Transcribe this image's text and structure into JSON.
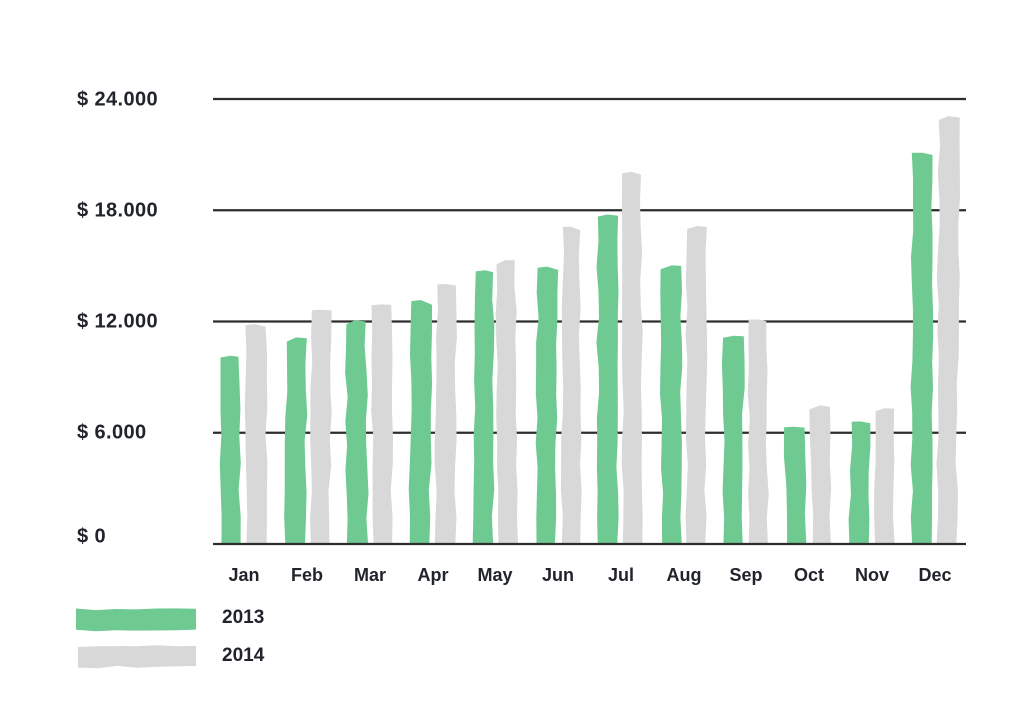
{
  "colors": {
    "green": "#6fca92",
    "gray": "#d8d8d8",
    "text": "#21242b",
    "gridline": "#2d2d2d",
    "background": "#ffffff"
  },
  "chart_data": {
    "type": "bar",
    "title": "",
    "style": "hand-drawn",
    "categories": [
      "Jan",
      "Feb",
      "Mar",
      "Apr",
      "May",
      "Jun",
      "Jul",
      "Aug",
      "Sep",
      "Oct",
      "Nov",
      "Dec"
    ],
    "series": [
      {
        "name": "2013",
        "color": "#6fca92",
        "values": [
          10100,
          11100,
          12000,
          13100,
          14700,
          14900,
          17700,
          15000,
          11200,
          6300,
          6600,
          21100
        ]
      },
      {
        "name": "2014",
        "color": "#d8d8d8",
        "values": [
          11800,
          12600,
          12900,
          14000,
          15300,
          17100,
          20000,
          17100,
          12100,
          7400,
          7300,
          23000
        ]
      }
    ],
    "y_ticks": [
      "$ 24.000",
      "$ 18.000",
      "$ 12.000",
      "$ 6.000",
      "$ 0"
    ],
    "y_tick_values": [
      24000,
      18000,
      12000,
      6000,
      0
    ],
    "ylim": [
      0,
      24000
    ],
    "xlabel": "",
    "ylabel": "",
    "grid": true,
    "legend_position": "bottom-left"
  },
  "legend": {
    "items": [
      {
        "label": "2013",
        "color": "#6fca92"
      },
      {
        "label": "2014",
        "color": "#d8d8d8"
      }
    ]
  }
}
